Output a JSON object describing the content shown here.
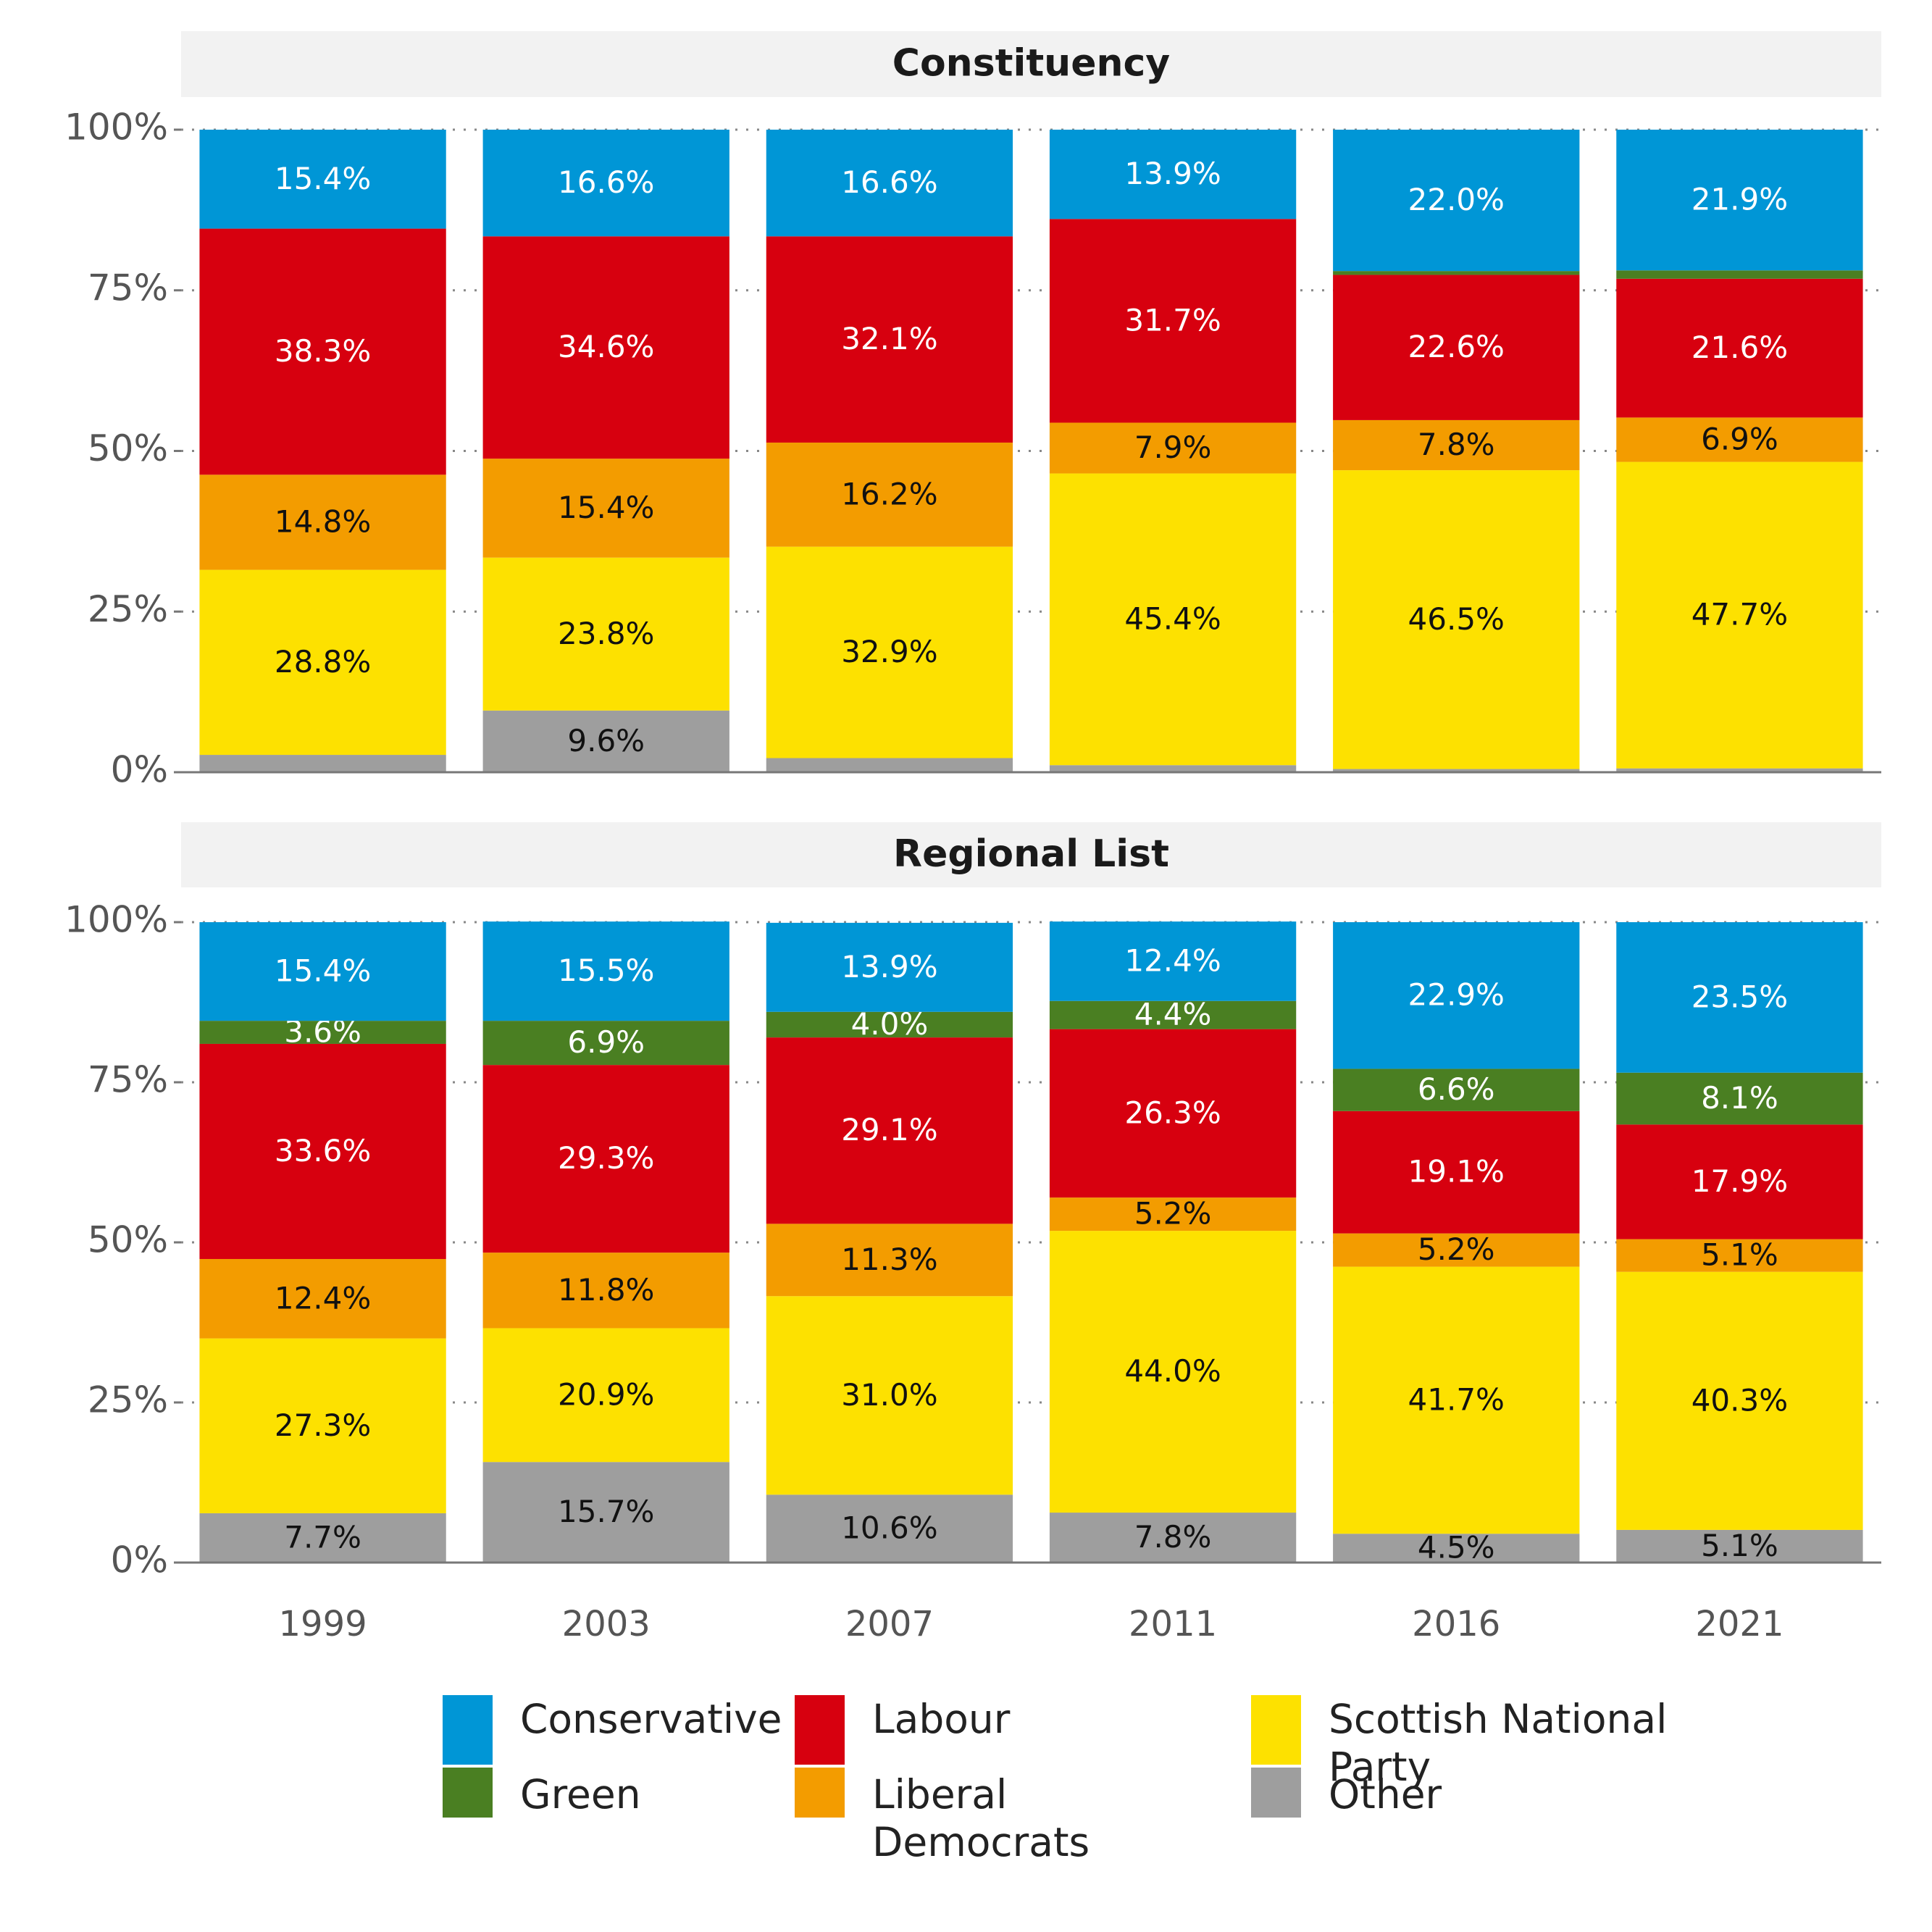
{
  "chart_data": [
    {
      "type": "bar",
      "stacked": true,
      "title": "Constituency",
      "ylim": [
        0,
        100
      ],
      "yticks": [
        {
          "value": 0,
          "label": "0%"
        },
        {
          "value": 25,
          "label": "25%"
        },
        {
          "value": 50,
          "label": "50%"
        },
        {
          "value": 75,
          "label": "75%"
        },
        {
          "value": 100,
          "label": "100%"
        }
      ],
      "grid": true,
      "legend": "bottom",
      "series": [
        {
          "name": "Conservative",
          "color": "#0096d6",
          "values": [
            15.4,
            16.6,
            16.6,
            13.9,
            22.0,
            21.9
          ],
          "value_labels": [
            "15.4%",
            "16.6%",
            "16.6%",
            "13.9%",
            "22.0%",
            "21.9%"
          ]
        },
        {
          "name": "Green",
          "color": "#4a7f22",
          "values": [
            null,
            null,
            null,
            null,
            0.6,
            1.3
          ],
          "value_labels": [
            null,
            null,
            null,
            null,
            null,
            null
          ]
        },
        {
          "name": "Labour",
          "color": "#d7000f",
          "values": [
            38.3,
            34.6,
            32.1,
            31.7,
            22.6,
            21.6
          ],
          "value_labels": [
            "38.3%",
            "34.6%",
            "32.1%",
            "31.7%",
            "22.6%",
            "21.6%"
          ]
        },
        {
          "name": "Liberal Democrats",
          "color": "#f39c00",
          "values": [
            14.8,
            15.4,
            16.2,
            7.9,
            7.8,
            6.9
          ],
          "value_labels": [
            "14.8%",
            "15.4%",
            "16.2%",
            "7.9%",
            "7.8%",
            "6.9%"
          ]
        },
        {
          "name": "Scottish National Party",
          "color": "#fde100",
          "values": [
            28.8,
            23.8,
            32.9,
            45.4,
            46.5,
            47.7
          ],
          "value_labels": [
            "28.8%",
            "23.8%",
            "32.9%",
            "45.4%",
            "46.5%",
            "47.7%"
          ]
        },
        {
          "name": "Other",
          "color": "#9e9e9e",
          "values": [
            2.7,
            9.6,
            2.2,
            1.1,
            0.5,
            0.6
          ],
          "value_labels": [
            null,
            "9.6%",
            null,
            null,
            null,
            null
          ]
        }
      ]
    },
    {
      "type": "bar",
      "stacked": true,
      "title": "Regional List",
      "ylim": [
        0,
        100
      ],
      "yticks": [
        {
          "value": 0,
          "label": "0%"
        },
        {
          "value": 25,
          "label": "25%"
        },
        {
          "value": 50,
          "label": "50%"
        },
        {
          "value": 75,
          "label": "75%"
        },
        {
          "value": 100,
          "label": "100%"
        }
      ],
      "grid": true,
      "categories": [
        "1999",
        "2003",
        "2007",
        "2011",
        "2016",
        "2021"
      ],
      "series": [
        {
          "values": [
            15.4,
            15.5,
            13.9,
            12.4,
            22.9,
            23.5
          ],
          "value_labels": [
            "15.4%",
            "15.5%",
            "13.9%",
            "12.4%",
            "22.9%",
            "23.5%"
          ]
        },
        {
          "values": [
            3.6,
            6.9,
            4.0,
            4.4,
            6.6,
            8.1
          ],
          "value_labels": [
            "3.6%",
            "6.9%",
            "4.0%",
            "4.4%",
            "6.6%",
            "8.1%"
          ]
        },
        {
          "values": [
            33.6,
            29.3,
            29.1,
            26.3,
            19.1,
            17.9
          ],
          "value_labels": [
            "33.6%",
            "29.3%",
            "29.1%",
            "26.3%",
            "19.1%",
            "17.9%"
          ]
        },
        {
          "values": [
            12.4,
            11.8,
            11.3,
            5.2,
            5.2,
            5.1
          ],
          "value_labels": [
            "12.4%",
            "11.8%",
            "11.3%",
            "5.2%",
            "5.2%",
            "5.1%"
          ]
        },
        {
          "values": [
            27.3,
            20.9,
            31.0,
            44.0,
            41.7,
            40.3
          ],
          "value_labels": [
            "27.3%",
            "20.9%",
            "31.0%",
            "44.0%",
            "41.7%",
            "40.3%"
          ]
        },
        {
          "values": [
            7.7,
            15.7,
            10.6,
            7.8,
            4.5,
            5.1
          ],
          "value_labels": [
            "7.7%",
            "15.7%",
            "10.6%",
            "7.8%",
            "4.5%",
            "5.1%"
          ]
        }
      ]
    }
  ]
}
